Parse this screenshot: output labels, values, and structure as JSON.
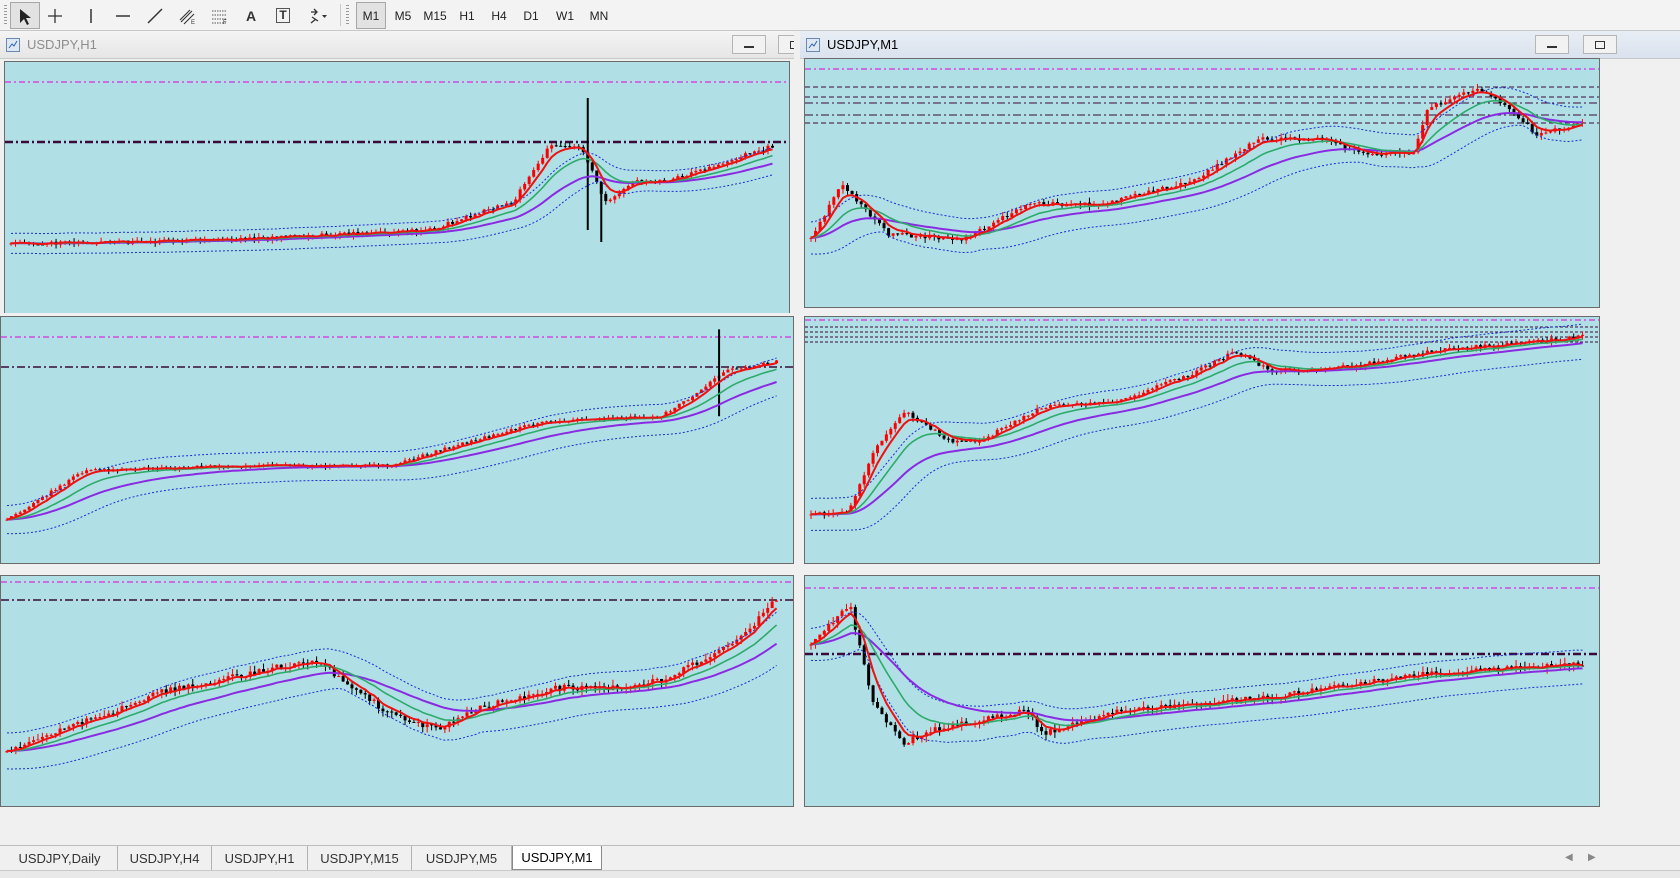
{
  "toolbar": {
    "tools": [
      {
        "name": "cursor-tool",
        "icon": "cursor-arrow-icon",
        "active": true
      },
      {
        "name": "crosshair-tool",
        "icon": "crosshair-icon",
        "active": false
      },
      {
        "name": "vertical-line-tool",
        "icon": "vertical-line-icon",
        "active": false
      },
      {
        "name": "horizontal-line-tool",
        "icon": "horizontal-line-icon",
        "active": false
      },
      {
        "name": "trendline-tool",
        "icon": "trendline-icon",
        "active": false
      },
      {
        "name": "equidistant-channel-tool",
        "icon": "channel-icon",
        "active": false
      },
      {
        "name": "fibonacci-tool",
        "icon": "fibonacci-icon",
        "active": false
      },
      {
        "name": "text-tool",
        "icon": "text-icon",
        "active": false
      },
      {
        "name": "text-label-tool",
        "icon": "text-label-icon",
        "active": false
      },
      {
        "name": "arrows-tool",
        "icon": "arrows-dropdown-icon",
        "active": false
      }
    ],
    "text_tool_glyph": "A",
    "text_label_glyph": "T",
    "periods": [
      "M1",
      "M5",
      "M15",
      "H1",
      "H4",
      "D1",
      "W1",
      "MN"
    ],
    "active_period": "M1"
  },
  "windows": [
    {
      "title": "USDJPY,H1",
      "active": false
    },
    {
      "title": "USDJPY,M1",
      "active": true
    }
  ],
  "tabs": [
    "USDJPY,Daily",
    "USDJPY,H4",
    "USDJPY,H1",
    "USDJPY,M15",
    "USDJPY,M5",
    "USDJPY,M1"
  ],
  "active_tab": "USDJPY,M1",
  "colors": {
    "chart_bg": "#b0e0e6",
    "bull_candle": "#ff0000",
    "bear_candle": "#000000",
    "ma_fast": "#ee1111",
    "ma_mid": "#2eaa6a",
    "ma_slow": "#8a2be2",
    "bands": "#1d2bd6",
    "level_magenta": "#e000e0",
    "level_dark": "#3a0a3a"
  }
}
